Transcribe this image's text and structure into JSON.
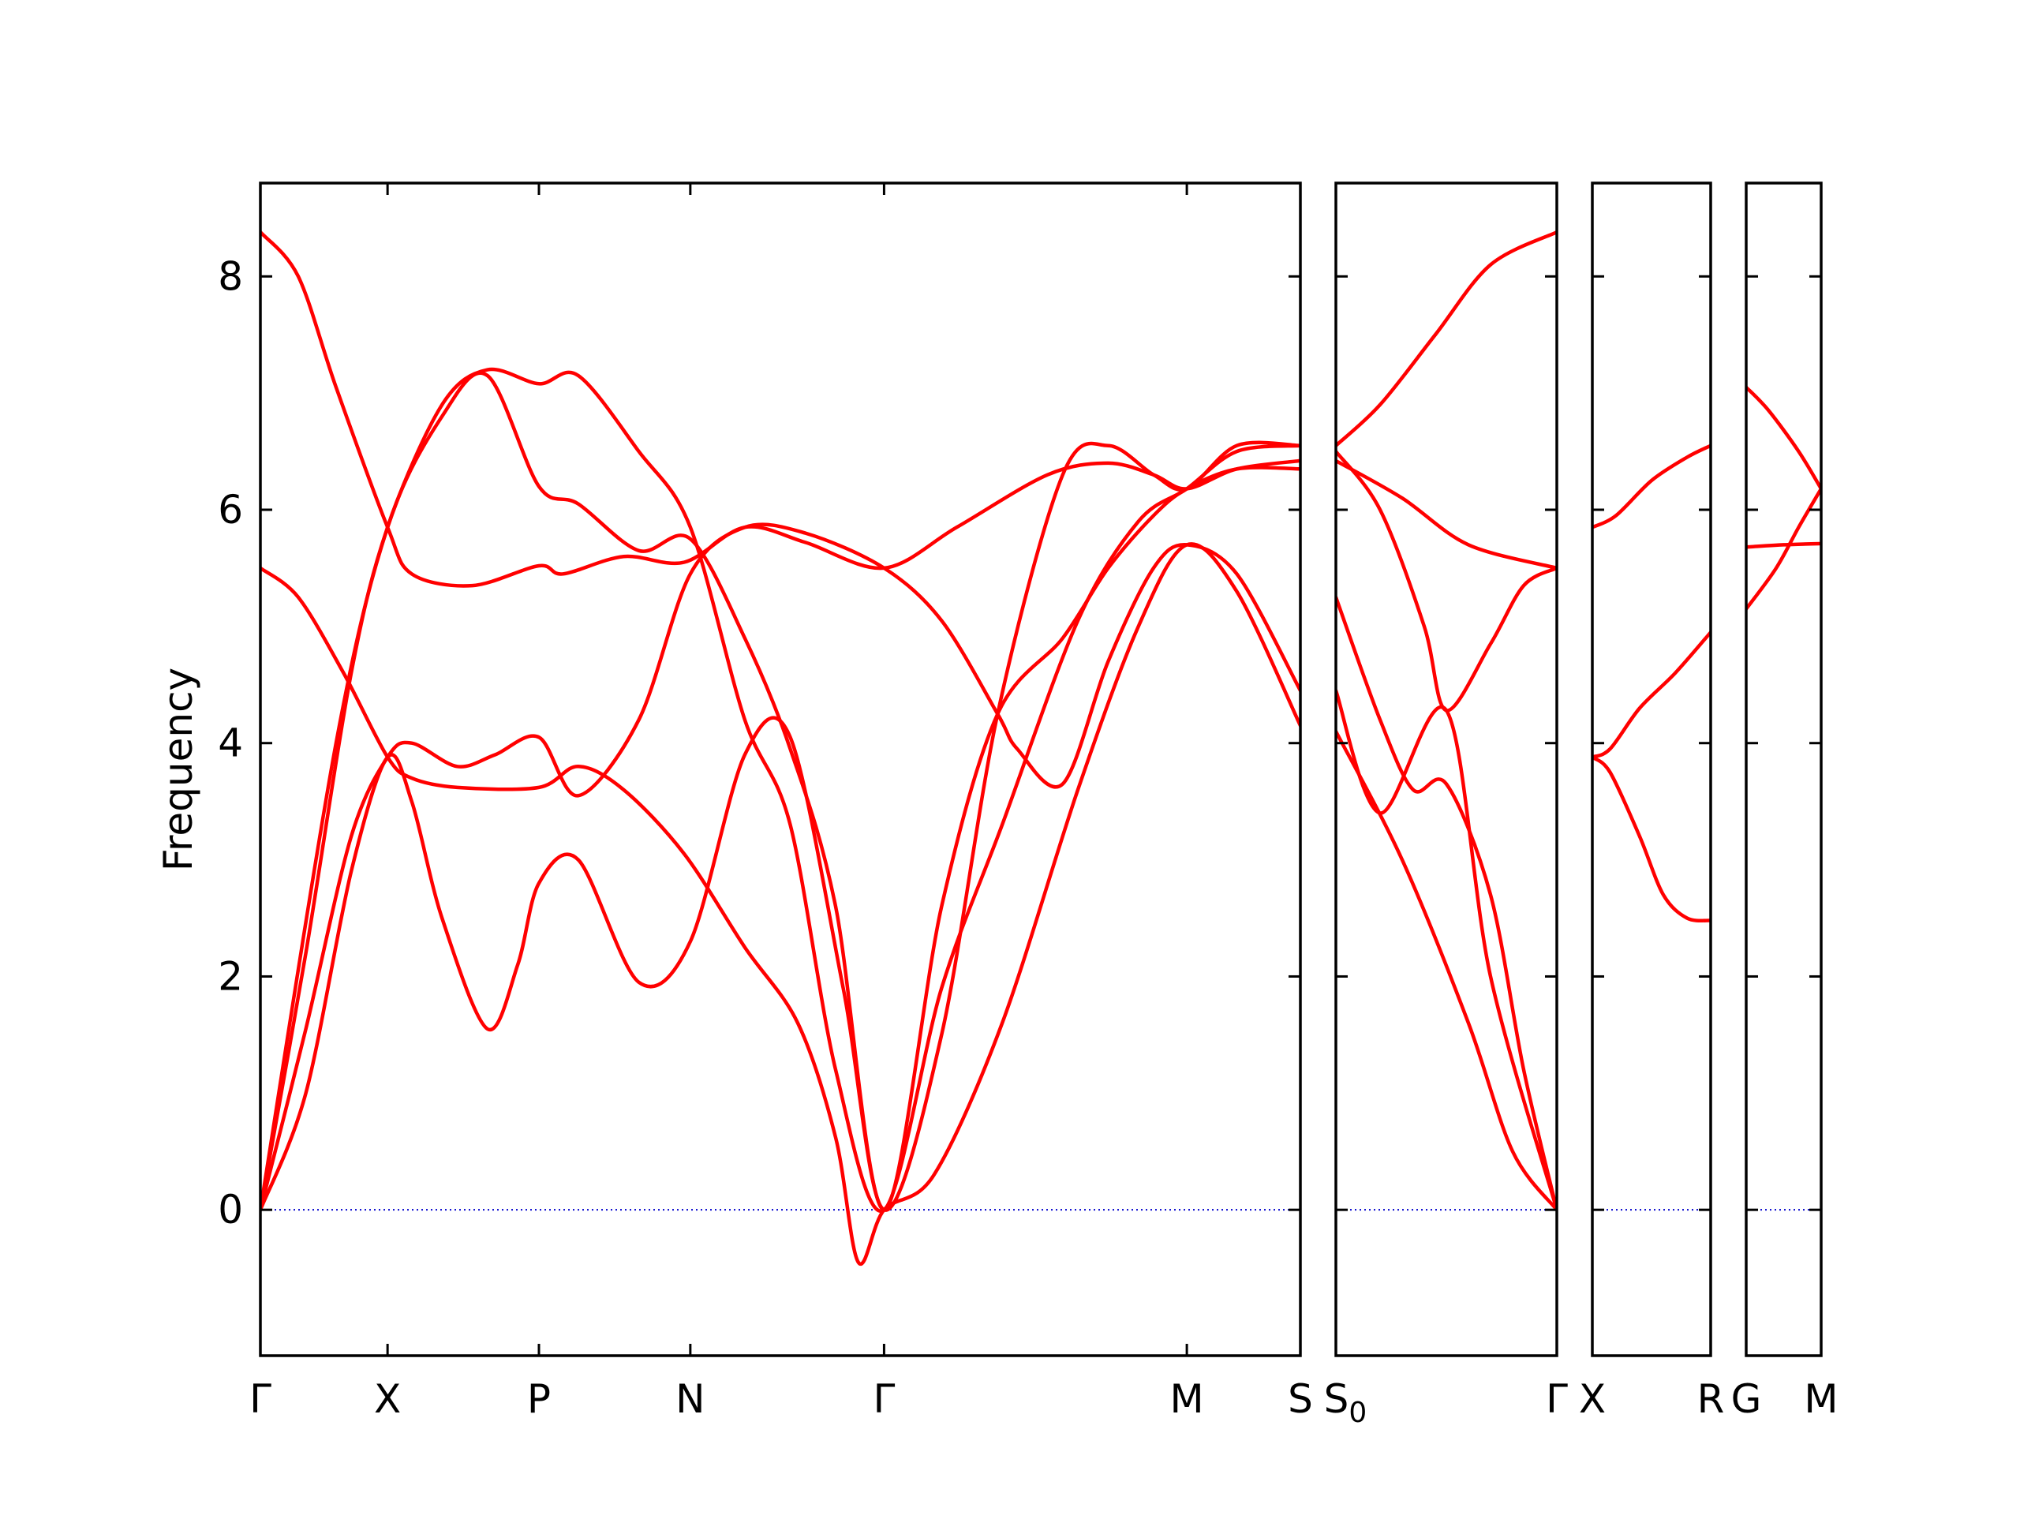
{
  "chart_data": {
    "type": "line",
    "title": "",
    "ylabel": "Frequency",
    "ylim": [
      -1.25,
      8.8
    ],
    "yticks": [
      0,
      2,
      4,
      6,
      8
    ],
    "colors": {
      "band": "#ff0000",
      "zero_line": "#0000cc"
    },
    "segments": [
      {
        "name": "Γ-X-P-N-Γ-M-S",
        "xlim": [
          0,
          6.87
        ],
        "ticks": [
          {
            "x": 0,
            "label": "Γ"
          },
          {
            "x": 0.84,
            "label": "X"
          },
          {
            "x": 1.84,
            "label": "P"
          },
          {
            "x": 2.84,
            "label": "N"
          },
          {
            "x": 4.12,
            "label": "Γ"
          },
          {
            "x": 6.12,
            "label": "M"
          },
          {
            "x": 6.87,
            "label": "S"
          }
        ],
        "bands": [
          [
            [
              0,
              8.38
            ],
            [
              0.25,
              8.0
            ],
            [
              0.5,
              7.05
            ],
            [
              0.84,
              5.85
            ],
            [
              1.0,
              5.45
            ],
            [
              1.4,
              5.35
            ],
            [
              1.84,
              5.52
            ],
            [
              2.0,
              5.45
            ],
            [
              2.4,
              5.6
            ],
            [
              2.8,
              5.55
            ],
            [
              3.2,
              5.85
            ],
            [
              3.6,
              5.72
            ],
            [
              4.12,
              5.5
            ],
            [
              4.6,
              5.85
            ],
            [
              5.2,
              6.3
            ],
            [
              5.6,
              6.4
            ],
            [
              5.9,
              6.3
            ],
            [
              6.12,
              6.18
            ],
            [
              6.45,
              6.35
            ],
            [
              6.87,
              6.42
            ]
          ],
          [
            [
              0,
              5.5
            ],
            [
              0.25,
              5.25
            ],
            [
              0.55,
              4.6
            ],
            [
              0.84,
              3.88
            ],
            [
              1.0,
              3.7
            ],
            [
              1.3,
              3.62
            ],
            [
              1.84,
              3.62
            ],
            [
              2.1,
              3.8
            ],
            [
              2.4,
              3.6
            ],
            [
              2.8,
              3.05
            ],
            [
              3.2,
              2.25
            ],
            [
              3.55,
              1.6
            ],
            [
              3.8,
              0.62
            ],
            [
              3.95,
              -0.45
            ],
            [
              4.12,
              0.0
            ],
            [
              4.45,
              0.3
            ],
            [
              4.9,
              1.6
            ],
            [
              5.4,
              3.6
            ],
            [
              5.8,
              5.0
            ],
            [
              6.12,
              5.7
            ],
            [
              6.45,
              5.3
            ],
            [
              6.87,
              4.15
            ]
          ],
          [
            [
              0,
              0
            ],
            [
              0.3,
              1.55
            ],
            [
              0.6,
              3.2
            ],
            [
              0.84,
              3.88
            ],
            [
              1.0,
              4.0
            ],
            [
              1.3,
              3.8
            ],
            [
              1.55,
              3.9
            ],
            [
              1.84,
              4.05
            ],
            [
              2.1,
              3.55
            ],
            [
              2.5,
              4.2
            ],
            [
              2.84,
              5.45
            ],
            [
              3.2,
              5.85
            ],
            [
              3.6,
              5.8
            ],
            [
              4.12,
              5.5
            ],
            [
              4.5,
              5.05
            ],
            [
              4.87,
              4.25
            ],
            [
              5.0,
              3.95
            ],
            [
              5.3,
              3.65
            ],
            [
              5.6,
              4.7
            ],
            [
              5.9,
              5.5
            ],
            [
              6.12,
              5.7
            ],
            [
              6.45,
              5.45
            ],
            [
              6.87,
              4.45
            ]
          ],
          [
            [
              0,
              0
            ],
            [
              0.3,
              1.0
            ],
            [
              0.6,
              2.9
            ],
            [
              0.84,
              3.88
            ],
            [
              1.0,
              3.5
            ],
            [
              1.2,
              2.5
            ],
            [
              1.5,
              1.55
            ],
            [
              1.7,
              2.1
            ],
            [
              1.84,
              2.8
            ],
            [
              2.1,
              3.0
            ],
            [
              2.5,
              1.95
            ],
            [
              2.84,
              2.3
            ],
            [
              3.2,
              3.9
            ],
            [
              3.5,
              4.05
            ],
            [
              3.85,
              1.9
            ],
            [
              4.12,
              0
            ],
            [
              4.5,
              1.5
            ],
            [
              4.87,
              4.25
            ],
            [
              5.3,
              6.3
            ],
            [
              5.6,
              6.55
            ],
            [
              5.9,
              6.3
            ],
            [
              6.12,
              6.18
            ],
            [
              6.45,
              6.55
            ],
            [
              6.87,
              6.55
            ]
          ],
          [
            [
              0,
              0
            ],
            [
              0.3,
              2.2
            ],
            [
              0.6,
              4.6
            ],
            [
              0.84,
              5.85
            ],
            [
              1.2,
              6.9
            ],
            [
              1.5,
              7.2
            ],
            [
              1.84,
              7.08
            ],
            [
              2.1,
              7.15
            ],
            [
              2.5,
              6.5
            ],
            [
              2.84,
              5.85
            ],
            [
              3.2,
              4.2
            ],
            [
              3.5,
              3.3
            ],
            [
              3.8,
              1.2
            ],
            [
              4.12,
              0
            ],
            [
              4.5,
              1.9
            ],
            [
              4.9,
              3.3
            ],
            [
              5.4,
              5.05
            ],
            [
              5.8,
              5.9
            ],
            [
              6.12,
              6.18
            ],
            [
              6.45,
              6.5
            ],
            [
              6.87,
              6.55
            ]
          ],
          [
            [
              0,
              0
            ],
            [
              0.5,
              4.0
            ],
            [
              0.84,
              5.85
            ],
            [
              1.2,
              6.8
            ],
            [
              1.5,
              7.15
            ],
            [
              1.84,
              6.2
            ],
            [
              2.1,
              6.05
            ],
            [
              2.5,
              5.65
            ],
            [
              2.84,
              5.75
            ],
            [
              3.2,
              4.9
            ],
            [
              3.5,
              3.95
            ],
            [
              3.8,
              2.6
            ],
            [
              4.12,
              0
            ],
            [
              4.5,
              2.6
            ],
            [
              4.87,
              4.25
            ],
            [
              5.3,
              4.9
            ],
            [
              5.6,
              5.5
            ],
            [
              5.9,
              5.95
            ],
            [
              6.12,
              6.18
            ],
            [
              6.45,
              6.35
            ],
            [
              6.87,
              6.35
            ]
          ]
        ]
      },
      {
        "name": "S0-Γ",
        "xlim": [
          0,
          1
        ],
        "ticks": [
          {
            "x": 0,
            "label": "S₀"
          },
          {
            "x": 1,
            "label": "Γ"
          }
        ],
        "bands": [
          [
            [
              0,
              6.55
            ],
            [
              0.2,
              6.9
            ],
            [
              0.45,
              7.5
            ],
            [
              0.7,
              8.1
            ],
            [
              1,
              8.38
            ]
          ],
          [
            [
              0,
              6.42
            ],
            [
              0.3,
              6.1
            ],
            [
              0.6,
              5.7
            ],
            [
              1,
              5.5
            ]
          ],
          [
            [
              0,
              6.5
            ],
            [
              0.2,
              6.0
            ],
            [
              0.4,
              5.0
            ],
            [
              0.5,
              4.28
            ],
            [
              0.7,
              4.85
            ],
            [
              0.85,
              5.35
            ],
            [
              1,
              5.5
            ]
          ],
          [
            [
              0,
              5.25
            ],
            [
              0.2,
              4.2
            ],
            [
              0.35,
              3.6
            ],
            [
              0.5,
              3.65
            ],
            [
              0.7,
              2.7
            ],
            [
              0.85,
              1.2
            ],
            [
              1,
              0
            ]
          ],
          [
            [
              0,
              4.45
            ],
            [
              0.2,
              3.4
            ],
            [
              0.5,
              4.28
            ],
            [
              0.7,
              2.0
            ],
            [
              1,
              0
            ]
          ],
          [
            [
              0,
              4.1
            ],
            [
              0.3,
              3.0
            ],
            [
              0.6,
              1.6
            ],
            [
              0.8,
              0.5
            ],
            [
              1,
              0
            ]
          ]
        ]
      },
      {
        "name": "X-R",
        "xlim": [
          0,
          1
        ],
        "ticks": [
          {
            "x": 0,
            "label": "X"
          },
          {
            "x": 1,
            "label": "R"
          }
        ],
        "bands": [
          [
            [
              0,
              5.85
            ],
            [
              0.2,
              5.95
            ],
            [
              0.5,
              6.25
            ],
            [
              0.8,
              6.45
            ],
            [
              1,
              6.55
            ]
          ],
          [
            [
              0,
              3.88
            ],
            [
              0.15,
              3.95
            ],
            [
              0.4,
              4.3
            ],
            [
              0.7,
              4.6
            ],
            [
              1,
              4.95
            ]
          ],
          [
            [
              0,
              3.88
            ],
            [
              0.15,
              3.75
            ],
            [
              0.4,
              3.2
            ],
            [
              0.6,
              2.7
            ],
            [
              0.8,
              2.5
            ],
            [
              1,
              2.48
            ]
          ]
        ]
      },
      {
        "name": "G-M",
        "xlim": [
          0,
          1
        ],
        "ticks": [
          {
            "x": 0,
            "label": "G"
          },
          {
            "x": 1,
            "label": "M"
          }
        ],
        "bands": [
          [
            [
              0,
              7.05
            ],
            [
              0.3,
              6.85
            ],
            [
              0.7,
              6.5
            ],
            [
              1,
              6.18
            ]
          ],
          [
            [
              0,
              5.68
            ],
            [
              0.5,
              5.7
            ],
            [
              1,
              5.71
            ]
          ],
          [
            [
              0,
              5.15
            ],
            [
              0.4,
              5.5
            ],
            [
              0.7,
              5.85
            ],
            [
              1,
              6.18
            ]
          ]
        ]
      }
    ]
  }
}
